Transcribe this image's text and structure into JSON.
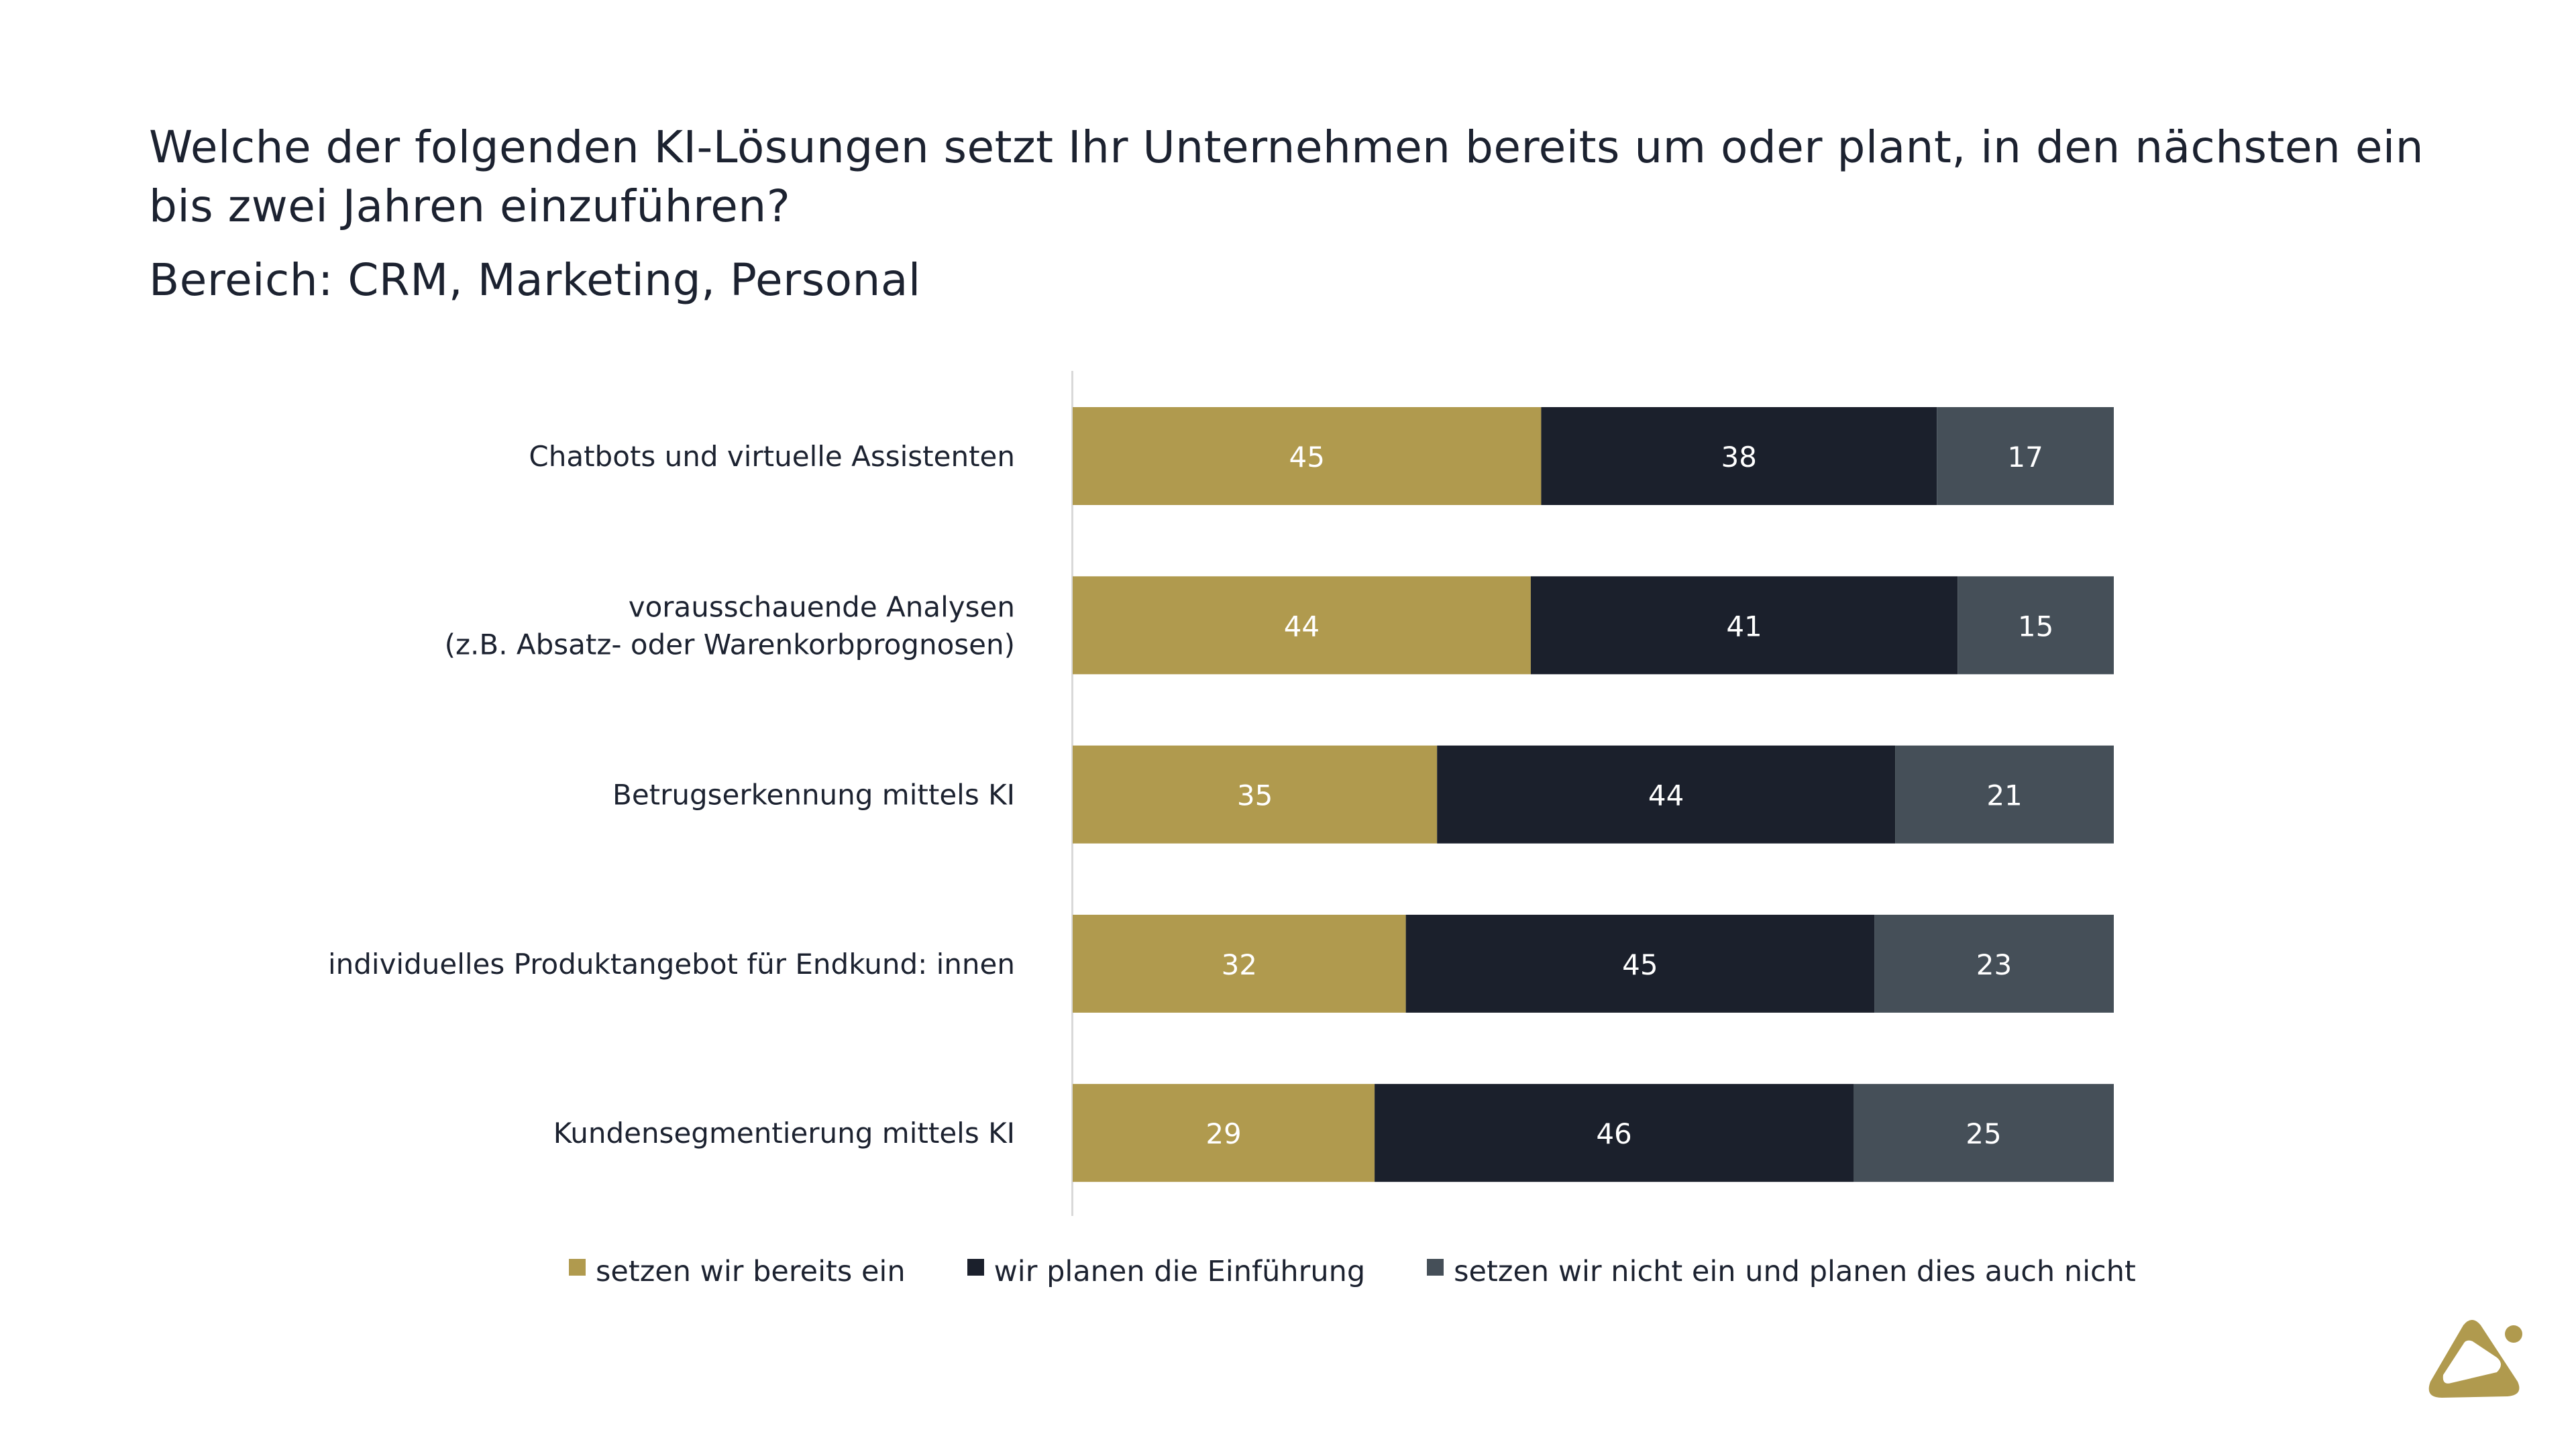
{
  "header": {
    "title": "Welche der folgenden KI-Lösungen setzt Ihr Unternehmen bereits um oder plant, in den nächsten ein bis zwei Jahren einzuführen?",
    "subtitle": "Bereich: CRM, Marketing, Personal"
  },
  "colors": {
    "accent_gold": "#b09a4e",
    "navy": "#1b202c",
    "slate": "#454f58",
    "text": "#1c2230",
    "axis": "#d9d9d9"
  },
  "chart_data": {
    "type": "bar",
    "orientation": "horizontal",
    "stacked": true,
    "title": "Welche der folgenden KI-Lösungen setzt Ihr Unternehmen bereits um oder plant, in den nächsten ein bis zwei Jahren einzuführen?",
    "subtitle": "Bereich: CRM, Marketing, Personal",
    "xlabel": "",
    "ylabel": "",
    "xlim": [
      0,
      100
    ],
    "grid": false,
    "legend_position": "bottom",
    "categories": [
      [
        "Chatbots und virtuelle Assistenten"
      ],
      [
        "vorausschauende Analysen",
        "(z.B. Absatz- oder Warenkorbprognosen)"
      ],
      [
        "Betrugserkennung mittels KI"
      ],
      [
        "individuelles Produktangebot für Endkund: innen"
      ],
      [
        "Kundensegmentierung mittels KI"
      ]
    ],
    "series": [
      {
        "name": "setzen wir bereits ein",
        "color": "#b09a4e",
        "values": [
          45,
          44,
          35,
          32,
          29
        ]
      },
      {
        "name": "wir planen die Einführung",
        "color": "#1b202c",
        "values": [
          38,
          41,
          44,
          45,
          46
        ]
      },
      {
        "name": "setzen wir nicht ein und planen dies auch nicht",
        "color": "#454f58",
        "values": [
          17,
          15,
          21,
          23,
          25
        ]
      }
    ]
  },
  "logo": {
    "icon": "triangle-dot-logo-icon"
  }
}
